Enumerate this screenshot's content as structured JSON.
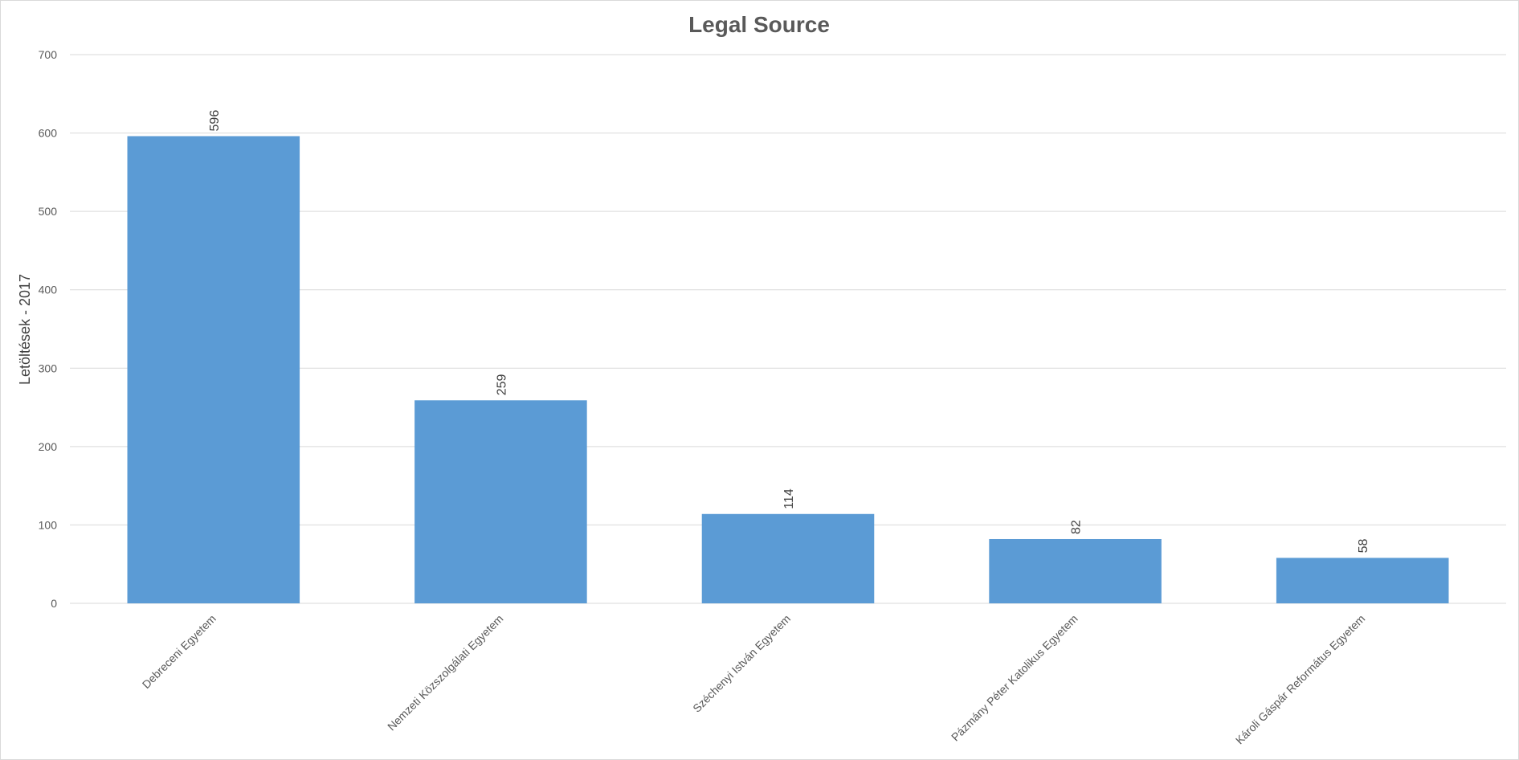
{
  "chart_data": {
    "type": "bar",
    "title": "Legal Source",
    "xlabel": "",
    "ylabel": "Letöltések - 2017",
    "ylim": [
      0,
      700
    ],
    "yticks": [
      0,
      100,
      200,
      300,
      400,
      500,
      600,
      700
    ],
    "categories": [
      "Debreceni Egyetem",
      "Nemzeti Közszolgálati Egyetem",
      "Széchenyi István Egyetem",
      "Pázmány Péter Katolikus Egyetem",
      "Károli Gáspár Református Egyetem"
    ],
    "values": [
      596,
      259,
      114,
      82,
      58
    ],
    "grid": true,
    "legend": "none",
    "colors": {
      "bar": "#5b9bd5",
      "grid": "#d9d9d9",
      "text": "#595959"
    }
  }
}
